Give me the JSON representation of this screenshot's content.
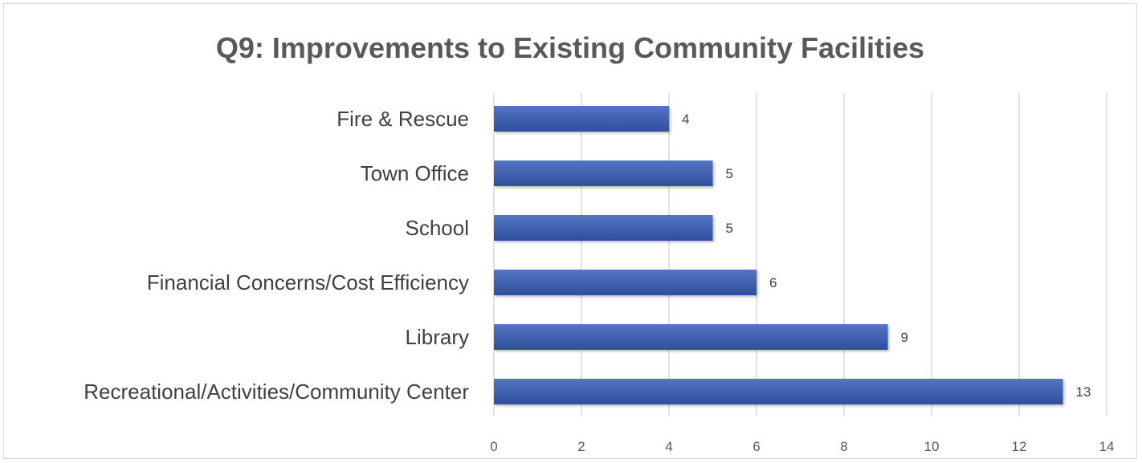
{
  "chart_data": {
    "type": "bar",
    "orientation": "horizontal",
    "title": "Q9: Improvements to Existing Community Facilities",
    "xlabel": "",
    "ylabel": "",
    "categories": [
      "Fire & Rescue",
      "Town Office",
      "School",
      "Financial Concerns/Cost Efficiency",
      "Library",
      "Recreational/Activities/Community Center"
    ],
    "values": [
      4,
      5,
      5,
      6,
      9,
      13
    ],
    "xlim": [
      0,
      14
    ],
    "xticks": [
      0,
      2,
      4,
      6,
      8,
      10,
      12,
      14
    ],
    "grid": true,
    "legend": false,
    "data_labels": true,
    "colors": {
      "bar": "#4062b0",
      "bar_dark": "#2f4f9a",
      "grid": "#d9d9d9",
      "title": "#595959"
    }
  }
}
